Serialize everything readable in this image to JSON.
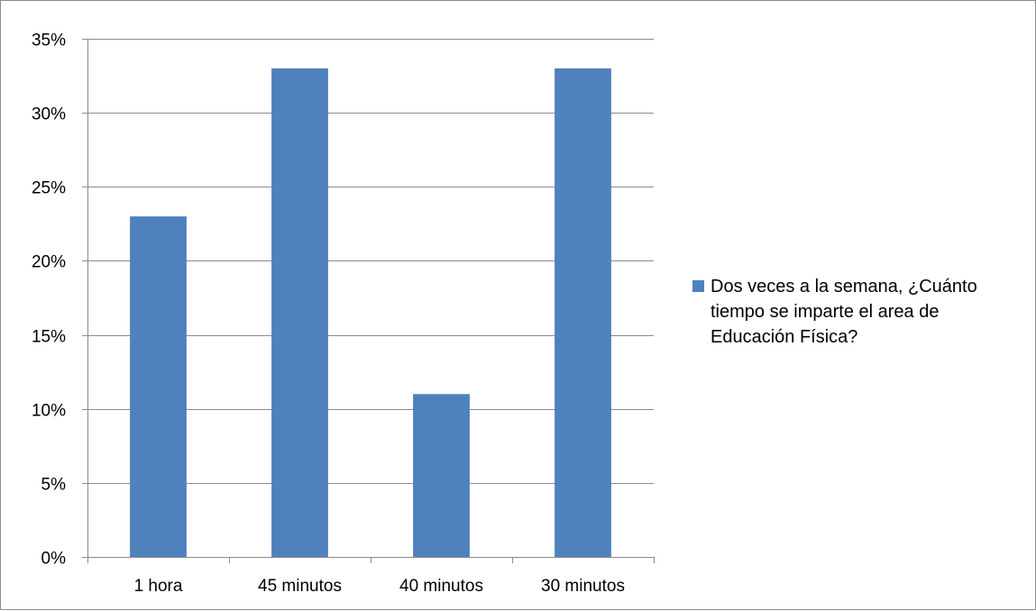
{
  "chart_data": {
    "type": "bar",
    "categories": [
      "1 hora",
      "45 minutos",
      "40 minutos",
      "30 minutos"
    ],
    "series": [
      {
        "name": "Dos veces a la semana, ¿Cuánto tiempo se imparte el area de Educación Física?",
        "values": [
          23,
          33,
          11,
          33
        ],
        "color": "#4f81bd"
      }
    ],
    "ylim": [
      0,
      35
    ],
    "yticks": [
      "0%",
      "5%",
      "10%",
      "15%",
      "20%",
      "25%",
      "30%",
      "35%"
    ],
    "grid": true,
    "legend_position": "right"
  }
}
